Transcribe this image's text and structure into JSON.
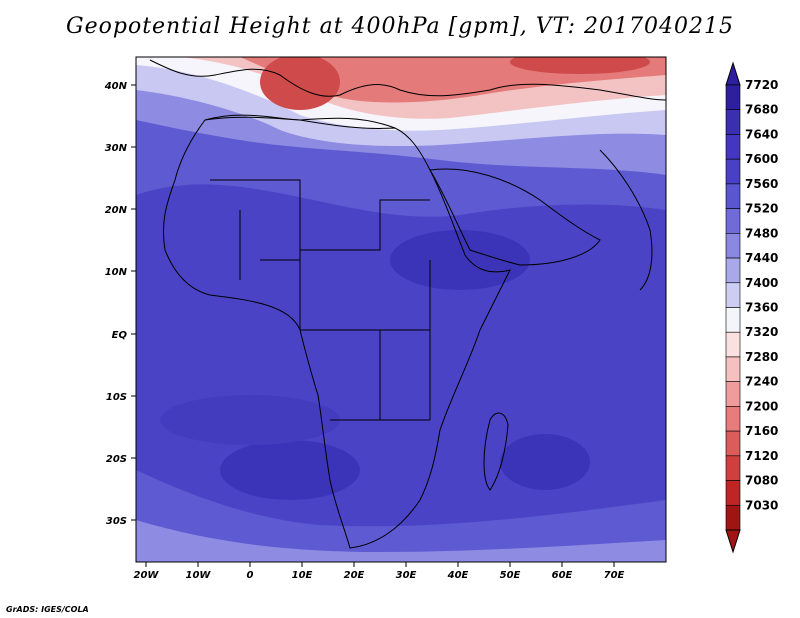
{
  "title": "Geopotential Height at 400hPa [gpm], VT: 2017040215",
  "credit": "GrADS: IGES/COLA",
  "x_ticks": [
    "20W",
    "10W",
    "0",
    "10E",
    "20E",
    "30E",
    "40E",
    "50E",
    "60E",
    "70E"
  ],
  "y_ticks": [
    "40N",
    "30N",
    "20N",
    "10N",
    "EQ",
    "10S",
    "20S",
    "30S"
  ],
  "colorbar": {
    "levels": [
      "7720",
      "7680",
      "7640",
      "7600",
      "7560",
      "7520",
      "7480",
      "7440",
      "7400",
      "7360",
      "7320",
      "7280",
      "7240",
      "7200",
      "7160",
      "7120",
      "7080",
      "7030"
    ],
    "colors": [
      "#2e1f9e",
      "#3a2fb0",
      "#4436c2",
      "#4a40c8",
      "#5a55d0",
      "#6f6cd8",
      "#8a88e0",
      "#a9a8ea",
      "#cdcdf4",
      "#f4f4fb",
      "#fbe0e0",
      "#f6c0c0",
      "#ef9c9c",
      "#e67c7c",
      "#dc5c5c",
      "#d03e3e",
      "#c02424",
      "#a01414"
    ]
  },
  "map_colors": {
    "deep_blue": "#3b34b8",
    "blue": "#4a43c6",
    "mid_blue": "#5e5ad2",
    "light_blue": "#8d8be2",
    "pale_blue": "#c9c8f2",
    "white": "#f5f5fb",
    "pink": "#f3c3c3",
    "red": "#e47a7a",
    "dark_red": "#cf4a4a"
  }
}
